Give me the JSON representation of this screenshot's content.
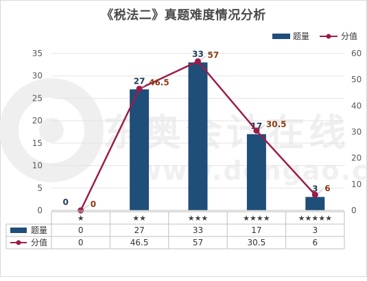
{
  "title": "《税法二》真题难度情况分析",
  "watermark": {
    "cn": "东奥会计在线",
    "en": "www.dongao.com"
  },
  "colors": {
    "bar": "#1f4e79",
    "line": "#9b1b4a",
    "bar_label": "#1f3b5c",
    "line_label": "#8a3a12",
    "grid": "#e3e3e3",
    "axis_text": "#595959"
  },
  "chart_data": {
    "type": "bar",
    "title": "《税法二》真题难度情况分析",
    "categories": [
      "★",
      "★★",
      "★★★",
      "★★★★",
      "★★★★★"
    ],
    "series": [
      {
        "name": "题量",
        "type": "bar",
        "axis": "left",
        "values": [
          0,
          27,
          33,
          17,
          3
        ],
        "labels": [
          "0",
          "27",
          "33",
          "17",
          "3"
        ]
      },
      {
        "name": "分值",
        "type": "line",
        "axis": "right",
        "values": [
          0,
          46.5,
          57,
          30.5,
          6
        ],
        "labels": [
          "0",
          "46.5",
          "57",
          "30.5",
          "6"
        ]
      }
    ],
    "y_left": {
      "min": 0,
      "max": 35,
      "ticks": [
        0,
        5,
        10,
        15,
        20,
        25,
        30,
        35
      ]
    },
    "y_right": {
      "min": 0,
      "max": 60,
      "ticks": [
        0,
        10,
        20,
        30,
        40,
        50,
        60
      ]
    },
    "legend_position": "top-right",
    "data_table": true
  }
}
